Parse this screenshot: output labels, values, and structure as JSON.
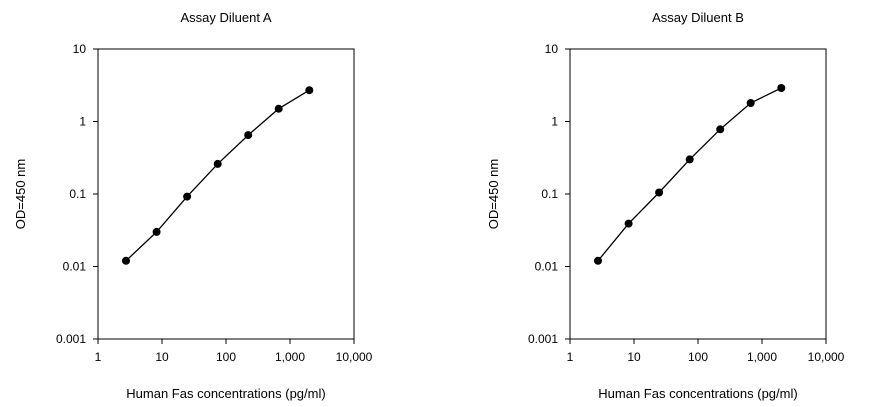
{
  "chart_data": [
    {
      "type": "line",
      "title": "Assay Diluent A",
      "xlabel": "Human Fas concentrations (pg/ml)",
      "ylabel": "OD=450 nm",
      "xscale": "log",
      "yscale": "log",
      "xlim": [
        1,
        10000
      ],
      "ylim": [
        0.001,
        10
      ],
      "x_ticks": [
        "1",
        "10",
        "100",
        "1,000",
        "10,000"
      ],
      "y_ticks": [
        "10",
        "1",
        "0.1",
        "0.01",
        "0.001"
      ],
      "grid": false,
      "series": [
        {
          "x": [
            2.74,
            8.23,
            24.7,
            74.1,
            222,
            667,
            2000
          ],
          "y": [
            0.012,
            0.03,
            0.092,
            0.26,
            0.65,
            1.5,
            2.7
          ]
        }
      ]
    },
    {
      "type": "line",
      "title": "Assay Diluent B",
      "xlabel": "Human Fas concentrations (pg/ml)",
      "ylabel": "OD=450 nm",
      "xscale": "log",
      "yscale": "log",
      "xlim": [
        1,
        10000
      ],
      "ylim": [
        0.001,
        10
      ],
      "x_ticks": [
        "1",
        "10",
        "100",
        "1,000",
        "10,000"
      ],
      "y_ticks": [
        "10",
        "1",
        "0.1",
        "0.01",
        "0.001"
      ],
      "grid": false,
      "series": [
        {
          "x": [
            2.74,
            8.23,
            24.7,
            74.1,
            222,
            667,
            2000
          ],
          "y": [
            0.012,
            0.039,
            0.105,
            0.3,
            0.78,
            1.8,
            2.9
          ]
        }
      ]
    }
  ]
}
